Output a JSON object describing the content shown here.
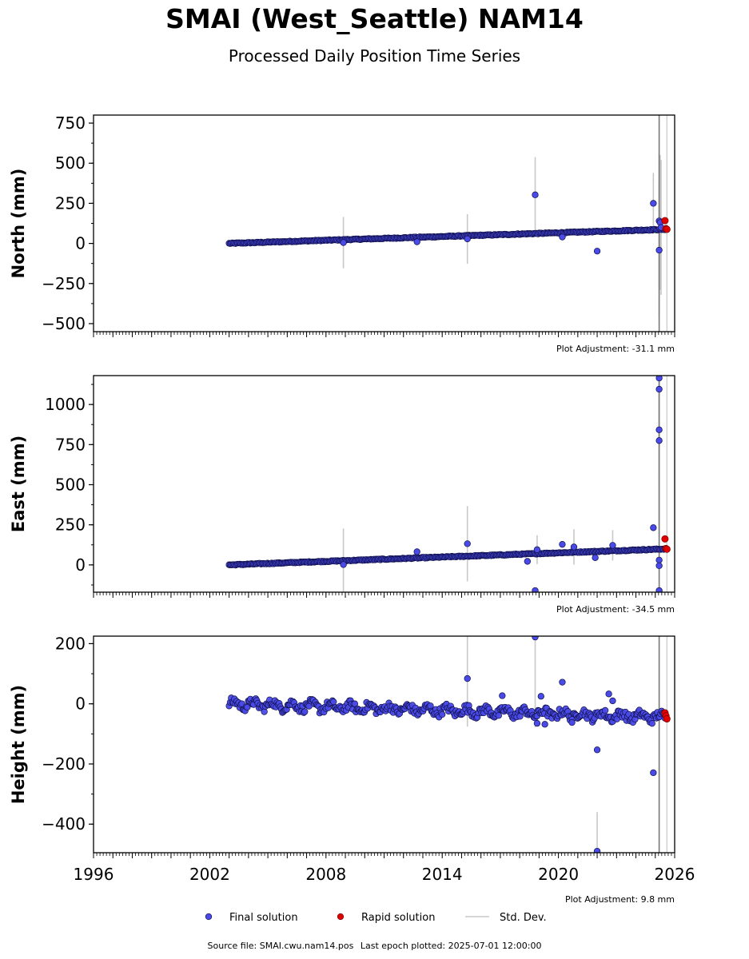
{
  "header": {
    "title": "SMAI (West_Seattle) NAM14",
    "subtitle": "Processed Daily Position Time Series"
  },
  "legend": {
    "final": "Final solution",
    "rapid": "Rapid solution",
    "std": "Std. Dev."
  },
  "footer": {
    "source": "Source file: SMAI.cwu.nam14.pos",
    "last_epoch": "Last epoch plotted: 2025-07-01 12:00:00"
  },
  "colors": {
    "final": "#4a4ae8",
    "final_edge": "#10104a",
    "rapid": "#e00000",
    "std": "#c8c8c8",
    "frame": "#000000"
  },
  "chart_data": [
    {
      "type": "scatter",
      "component": "north",
      "ylabel": "North (mm)",
      "ylim": [
        -550,
        800
      ],
      "xlim": [
        1996,
        2026
      ],
      "yticks": [
        750,
        500,
        250,
        0,
        -250,
        -500
      ],
      "adjustment": "Plot Adjustment: -31.1 mm",
      "trend": {
        "x": [
          2003.0,
          2025.6
        ],
        "y": [
          0,
          88
        ]
      },
      "final_outliers": [
        {
          "x": 2018.8,
          "y": 303,
          "err": 235
        },
        {
          "x": 2024.9,
          "y": 250,
          "err": 190
        },
        {
          "x": 2025.2,
          "y": 140,
          "err": 420
        },
        {
          "x": 2025.25,
          "y": 130,
          "err": 420
        },
        {
          "x": 2025.3,
          "y": 100,
          "err": 420
        },
        {
          "x": 2025.2,
          "y": -42,
          "err": 420
        },
        {
          "x": 2022.0,
          "y": -48,
          "err": 0
        },
        {
          "x": 2020.2,
          "y": 40,
          "err": 0
        },
        {
          "x": 2015.3,
          "y": 28,
          "err": 155
        },
        {
          "x": 2008.9,
          "y": 5,
          "err": 160
        },
        {
          "x": 2012.7,
          "y": 10,
          "err": 0
        }
      ],
      "rapid": [
        {
          "x": 2025.5,
          "y": 142
        },
        {
          "x": 2025.55,
          "y": 92
        },
        {
          "x": 2025.6,
          "y": 88
        }
      ]
    },
    {
      "type": "scatter",
      "component": "east",
      "ylabel": "East (mm)",
      "ylim": [
        -170,
        1180
      ],
      "xlim": [
        1996,
        2026
      ],
      "yticks": [
        1000,
        750,
        500,
        250,
        0
      ],
      "adjustment": "Plot Adjustment: -34.5 mm",
      "trend": {
        "x": [
          2003.0,
          2025.6
        ],
        "y": [
          0,
          100
        ]
      },
      "final_outliers": [
        {
          "x": 2025.2,
          "y": 1165,
          "err": 600
        },
        {
          "x": 2025.2,
          "y": 1095,
          "err": 600
        },
        {
          "x": 2025.2,
          "y": 842,
          "err": 600
        },
        {
          "x": 2025.2,
          "y": 775,
          "err": 600
        },
        {
          "x": 2024.9,
          "y": 232,
          "err": 0
        },
        {
          "x": 2025.2,
          "y": 30,
          "err": 0
        },
        {
          "x": 2025.2,
          "y": -5,
          "err": 0
        },
        {
          "x": 2025.2,
          "y": -160,
          "err": 0
        },
        {
          "x": 2018.8,
          "y": -160,
          "err": 0
        },
        {
          "x": 2015.3,
          "y": 132,
          "err": 235
        },
        {
          "x": 2012.7,
          "y": 82,
          "err": 0
        },
        {
          "x": 2008.9,
          "y": 2,
          "err": 225
        },
        {
          "x": 2018.4,
          "y": 22,
          "err": 0
        },
        {
          "x": 2018.9,
          "y": 95,
          "err": 90
        },
        {
          "x": 2020.2,
          "y": 128,
          "err": 0
        },
        {
          "x": 2020.8,
          "y": 112,
          "err": 110
        },
        {
          "x": 2021.9,
          "y": 45,
          "err": 0
        },
        {
          "x": 2022.8,
          "y": 122,
          "err": 95
        }
      ],
      "rapid": [
        {
          "x": 2025.5,
          "y": 162
        },
        {
          "x": 2025.55,
          "y": 102
        },
        {
          "x": 2025.6,
          "y": 98
        }
      ]
    },
    {
      "type": "scatter",
      "component": "height",
      "ylabel": "Height (mm)",
      "ylim": [
        -495,
        225
      ],
      "xlim": [
        1996,
        2026
      ],
      "yticks": [
        200,
        0,
        -200,
        -400
      ],
      "xticks": [
        1996,
        2002,
        2008,
        2014,
        2020,
        2026
      ],
      "adjustment": "Plot Adjustment: 9.8 mm",
      "trend": {
        "x": [
          2003.0,
          2025.6
        ],
        "y": [
          0,
          -45
        ]
      },
      "final_outliers": [
        {
          "x": 2018.8,
          "y": 222,
          "err": 300
        },
        {
          "x": 2015.3,
          "y": 84,
          "err": 160
        },
        {
          "x": 2020.2,
          "y": 72,
          "err": 0
        },
        {
          "x": 2022.6,
          "y": 33,
          "err": 0
        },
        {
          "x": 2022.8,
          "y": 10,
          "err": 0
        },
        {
          "x": 2017.1,
          "y": 27,
          "err": 0
        },
        {
          "x": 2019.1,
          "y": 25,
          "err": 0
        },
        {
          "x": 2022.0,
          "y": -153,
          "err": 0
        },
        {
          "x": 2022.0,
          "y": -490,
          "err": 130
        },
        {
          "x": 2024.9,
          "y": -229,
          "err": 0
        },
        {
          "x": 2019.3,
          "y": -68,
          "err": 0
        },
        {
          "x": 2018.9,
          "y": -65,
          "err": 0
        },
        {
          "x": 2020.7,
          "y": -62,
          "err": 0
        }
      ],
      "rapid": [
        {
          "x": 2025.5,
          "y": -30
        },
        {
          "x": 2025.55,
          "y": -40
        },
        {
          "x": 2025.6,
          "y": -50
        }
      ]
    }
  ]
}
